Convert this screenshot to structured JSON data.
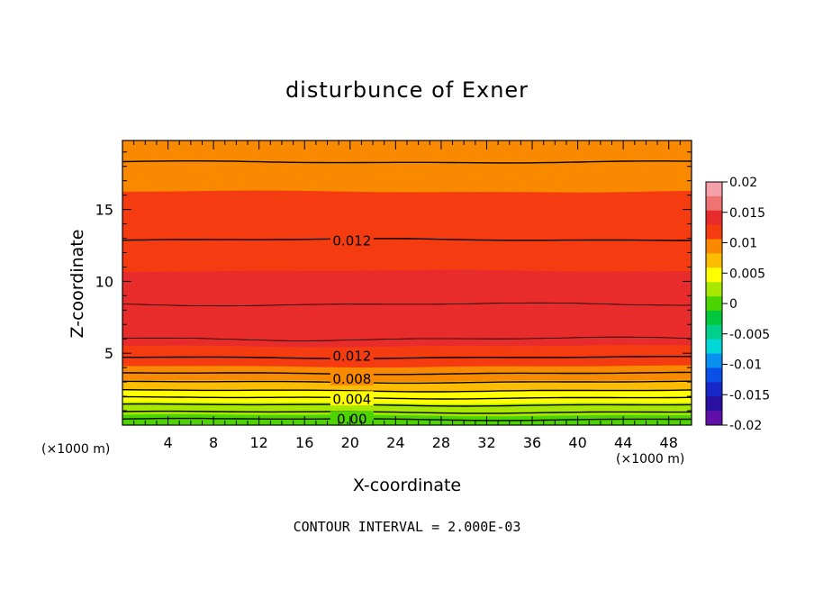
{
  "chart_data": {
    "type": "contour",
    "title": "disturbunce of Exner",
    "xlabel": "X-coordinate",
    "ylabel": "Z-coordinate",
    "x_unit": "(×1000 m)",
    "y_unit": "(×1000 m)",
    "xlim": [
      0,
      50
    ],
    "ylim": [
      0,
      19.8
    ],
    "x_ticks": [
      4,
      8,
      12,
      16,
      20,
      24,
      28,
      32,
      36,
      40,
      44,
      48
    ],
    "y_ticks": [
      5,
      10,
      15
    ],
    "contour_interval_text": "CONTOUR INTERVAL = 2.000E-03",
    "colorbar": {
      "ticks": [
        "0.02",
        "0.015",
        "0.01",
        "0.005",
        "0",
        "-0.005",
        "-0.01",
        "-0.015",
        "-0.02"
      ],
      "range": [
        -0.02,
        0.02
      ],
      "colors": [
        "#f4a0a8",
        "#ee7474",
        "#e82c2c",
        "#f53c10",
        "#f98a00",
        "#fcbc00",
        "#ffff00",
        "#a8e800",
        "#4cd400",
        "#00c83c",
        "#00d08c",
        "#00d8d8",
        "#0890f0",
        "#0850e8",
        "#1828c8",
        "#2810a0",
        "#6010a8"
      ]
    },
    "contour_labels": [
      {
        "text": "0.012",
        "x": 17,
        "z": 12.8
      },
      {
        "text": "0.012",
        "x": 17,
        "z": 4.8
      },
      {
        "text": "0.008",
        "x": 17,
        "z": 3.2
      },
      {
        "text": "0.004",
        "x": 17,
        "z": 1.8
      },
      {
        "text": "0.00",
        "x": 17,
        "z": 0.4
      }
    ],
    "field_profile": [
      {
        "z": 0.0,
        "value": -0.001
      },
      {
        "z": 0.6,
        "value": 0.001
      },
      {
        "z": 1.2,
        "value": 0.003
      },
      {
        "z": 1.8,
        "value": 0.004
      },
      {
        "z": 2.4,
        "value": 0.006
      },
      {
        "z": 3.0,
        "value": 0.008
      },
      {
        "z": 3.8,
        "value": 0.01
      },
      {
        "z": 4.6,
        "value": 0.012
      },
      {
        "z": 6.0,
        "value": 0.0135
      },
      {
        "z": 7.0,
        "value": 0.0148
      },
      {
        "z": 8.4,
        "value": 0.014
      },
      {
        "z": 11.0,
        "value": 0.0128
      },
      {
        "z": 13.0,
        "value": 0.012
      },
      {
        "z": 15.5,
        "value": 0.0108
      },
      {
        "z": 18.3,
        "value": 0.01
      },
      {
        "z": 19.8,
        "value": 0.0095
      }
    ]
  }
}
